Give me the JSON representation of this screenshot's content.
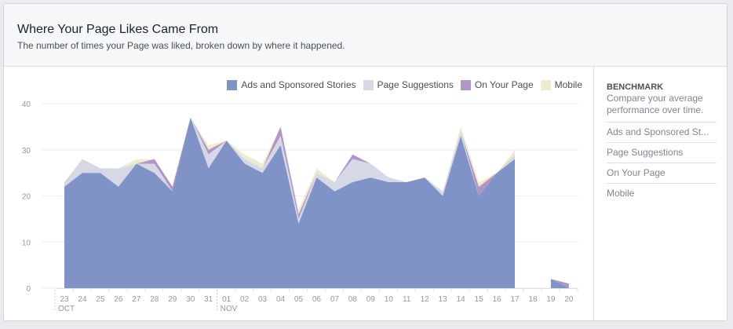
{
  "header": {
    "title": "Where Your Page Likes Came From",
    "subtitle": "The number of times your Page was liked, broken down by where it happened."
  },
  "legend": [
    {
      "label": "Ads and Sponsored Stories",
      "color": "#7f93c6"
    },
    {
      "label": "Page Suggestions",
      "color": "#d6d9e5"
    },
    {
      "label": "On Your Page",
      "color": "#b394c6"
    },
    {
      "label": "Mobile",
      "color": "#eeeccc"
    }
  ],
  "benchmark": {
    "title": "BENCHMARK",
    "description": "Compare your average performance over time.",
    "items": [
      "Ads and Sponsored St...",
      "Page Suggestions",
      "On Your Page",
      "Mobile"
    ]
  },
  "chart_data": {
    "type": "area",
    "stacked": true,
    "title": "Where Your Page Likes Came From",
    "xlabel": "",
    "ylabel": "",
    "ylim": [
      0,
      40
    ],
    "yticks": [
      0,
      10,
      20,
      30,
      40
    ],
    "grid": true,
    "legend_position": "top-right",
    "categories": [
      "23",
      "24",
      "25",
      "26",
      "27",
      "28",
      "29",
      "30",
      "31",
      "01",
      "02",
      "03",
      "04",
      "05",
      "06",
      "07",
      "08",
      "09",
      "10",
      "11",
      "12",
      "13",
      "14",
      "15",
      "16",
      "17",
      "18",
      "19",
      "20"
    ],
    "month_labels": [
      {
        "label": "OCT",
        "index": 0
      },
      {
        "label": "NOV",
        "index": 9
      }
    ],
    "series": [
      {
        "name": "Ads and Sponsored Stories",
        "color": "#7f93c6",
        "values": [
          22,
          25,
          25,
          22,
          27,
          25,
          21,
          37,
          26,
          32,
          27,
          25,
          31,
          14,
          24,
          21,
          23,
          24,
          23,
          23,
          24,
          20,
          33,
          20,
          25,
          28,
          null,
          2,
          0
        ]
      },
      {
        "name": "Page Suggestions",
        "color": "#d6d9e5",
        "values": [
          1,
          3,
          1,
          4,
          0,
          2,
          0,
          0,
          3,
          0,
          1,
          1,
          2,
          1,
          1,
          2,
          5,
          3,
          1,
          0,
          0,
          1,
          1,
          0,
          0,
          1,
          null,
          0,
          0
        ]
      },
      {
        "name": "On Your Page",
        "color": "#b394c6",
        "values": [
          0,
          0,
          0,
          0,
          0,
          1,
          1,
          0,
          1,
          0,
          0,
          0,
          2,
          1,
          0,
          0,
          1,
          0,
          0,
          0,
          0,
          0,
          0,
          2,
          0,
          0,
          null,
          0,
          1
        ]
      },
      {
        "name": "Mobile",
        "color": "#eeeccc",
        "values": [
          0,
          0,
          0,
          0,
          1,
          0,
          0,
          0,
          1,
          0,
          1,
          1,
          0,
          1,
          1,
          0,
          0,
          0,
          0,
          0,
          0,
          0,
          1,
          1,
          0,
          1,
          null,
          0,
          0
        ]
      }
    ]
  }
}
